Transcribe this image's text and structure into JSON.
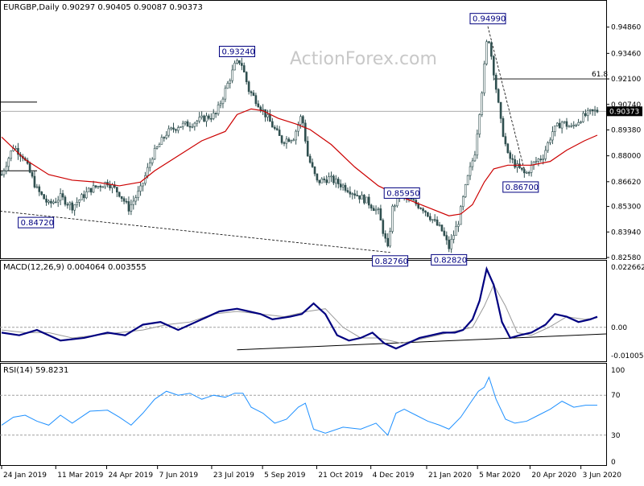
{
  "chart_data": [
    {
      "type": "candlestick",
      "title": "EURGBP,Daily  0.90297 0.90405 0.90087 0.90373",
      "watermark": "ActionForex.com",
      "ylim": [
        0.8258,
        0.9622
      ],
      "y_ticks": [
        "0.94860",
        "0.93460",
        "0.92100",
        "0.90740",
        "0.89380",
        "0.88000",
        "0.86620",
        "0.85300",
        "0.83940",
        "0.82580"
      ],
      "current_price": "0.90373",
      "fib_label": "61.8",
      "fib_level": 0.921,
      "candle_color": "#2f4f4f",
      "ma_color": "#cc0000",
      "annotations": [
        {
          "label": "0.84720",
          "date_index": 10,
          "price": 0.8472
        },
        {
          "label": "0.93240",
          "date_index": 200,
          "price": 0.9324
        },
        {
          "label": "0.82760",
          "date_index": 330,
          "price": 0.8276
        },
        {
          "label": "0.85950",
          "date_index": 340,
          "price": 0.8595
        },
        {
          "label": "0.82820",
          "date_index": 380,
          "price": 0.8282
        },
        {
          "label": "0.94990",
          "date_index": 413,
          "price": 0.9499
        },
        {
          "label": "0.86700",
          "date_index": 445,
          "price": 0.867
        }
      ],
      "price_series": [
        {
          "d": 0,
          "v": 0.87
        },
        {
          "d": 10,
          "v": 0.885
        },
        {
          "d": 18,
          "v": 0.88
        },
        {
          "d": 30,
          "v": 0.862
        },
        {
          "d": 40,
          "v": 0.854
        },
        {
          "d": 50,
          "v": 0.858
        },
        {
          "d": 60,
          "v": 0.853
        },
        {
          "d": 75,
          "v": 0.862
        },
        {
          "d": 90,
          "v": 0.866
        },
        {
          "d": 100,
          "v": 0.86
        },
        {
          "d": 108,
          "v": 0.852
        },
        {
          "d": 118,
          "v": 0.862
        },
        {
          "d": 128,
          "v": 0.88
        },
        {
          "d": 140,
          "v": 0.892
        },
        {
          "d": 150,
          "v": 0.896
        },
        {
          "d": 160,
          "v": 0.897
        },
        {
          "d": 172,
          "v": 0.9
        },
        {
          "d": 182,
          "v": 0.902
        },
        {
          "d": 190,
          "v": 0.915
        },
        {
          "d": 198,
          "v": 0.928
        },
        {
          "d": 203,
          "v": 0.931
        },
        {
          "d": 210,
          "v": 0.915
        },
        {
          "d": 218,
          "v": 0.908
        },
        {
          "d": 228,
          "v": 0.898
        },
        {
          "d": 238,
          "v": 0.888
        },
        {
          "d": 248,
          "v": 0.89
        },
        {
          "d": 255,
          "v": 0.902
        },
        {
          "d": 260,
          "v": 0.88
        },
        {
          "d": 268,
          "v": 0.866
        },
        {
          "d": 278,
          "v": 0.868
        },
        {
          "d": 290,
          "v": 0.864
        },
        {
          "d": 300,
          "v": 0.86
        },
        {
          "d": 310,
          "v": 0.856
        },
        {
          "d": 320,
          "v": 0.85
        },
        {
          "d": 328,
          "v": 0.83
        },
        {
          "d": 332,
          "v": 0.852
        },
        {
          "d": 338,
          "v": 0.859
        },
        {
          "d": 348,
          "v": 0.856
        },
        {
          "d": 358,
          "v": 0.852
        },
        {
          "d": 366,
          "v": 0.846
        },
        {
          "d": 374,
          "v": 0.84
        },
        {
          "d": 380,
          "v": 0.831
        },
        {
          "d": 388,
          "v": 0.845
        },
        {
          "d": 395,
          "v": 0.866
        },
        {
          "d": 402,
          "v": 0.882
        },
        {
          "d": 408,
          "v": 0.915
        },
        {
          "d": 413,
          "v": 0.946
        },
        {
          "d": 418,
          "v": 0.925
        },
        {
          "d": 424,
          "v": 0.898
        },
        {
          "d": 430,
          "v": 0.88
        },
        {
          "d": 438,
          "v": 0.874
        },
        {
          "d": 445,
          "v": 0.87
        },
        {
          "d": 452,
          "v": 0.876
        },
        {
          "d": 460,
          "v": 0.88
        },
        {
          "d": 468,
          "v": 0.893
        },
        {
          "d": 476,
          "v": 0.898
        },
        {
          "d": 484,
          "v": 0.895
        },
        {
          "d": 492,
          "v": 0.9
        },
        {
          "d": 500,
          "v": 0.903
        },
        {
          "d": 506,
          "v": 0.904
        }
      ],
      "ma_series": [
        {
          "d": 0,
          "v": 0.89
        },
        {
          "d": 20,
          "v": 0.878
        },
        {
          "d": 40,
          "v": 0.87
        },
        {
          "d": 60,
          "v": 0.867
        },
        {
          "d": 80,
          "v": 0.866
        },
        {
          "d": 100,
          "v": 0.864
        },
        {
          "d": 118,
          "v": 0.866
        },
        {
          "d": 130,
          "v": 0.872
        },
        {
          "d": 150,
          "v": 0.88
        },
        {
          "d": 170,
          "v": 0.888
        },
        {
          "d": 190,
          "v": 0.893
        },
        {
          "d": 200,
          "v": 0.902
        },
        {
          "d": 212,
          "v": 0.905
        },
        {
          "d": 222,
          "v": 0.904
        },
        {
          "d": 235,
          "v": 0.9
        },
        {
          "d": 250,
          "v": 0.897
        },
        {
          "d": 262,
          "v": 0.894
        },
        {
          "d": 280,
          "v": 0.886
        },
        {
          "d": 300,
          "v": 0.874
        },
        {
          "d": 320,
          "v": 0.864
        },
        {
          "d": 340,
          "v": 0.858
        },
        {
          "d": 360,
          "v": 0.853
        },
        {
          "d": 380,
          "v": 0.848
        },
        {
          "d": 390,
          "v": 0.849
        },
        {
          "d": 400,
          "v": 0.854
        },
        {
          "d": 410,
          "v": 0.866
        },
        {
          "d": 418,
          "v": 0.873
        },
        {
          "d": 430,
          "v": 0.875
        },
        {
          "d": 450,
          "v": 0.875
        },
        {
          "d": 466,
          "v": 0.877
        },
        {
          "d": 480,
          "v": 0.883
        },
        {
          "d": 495,
          "v": 0.888
        },
        {
          "d": 506,
          "v": 0.891
        }
      ]
    },
    {
      "type": "line",
      "title": "MACD(12,26,9) 0.004064 0.003555",
      "ylim": [
        -0.0125,
        0.0245
      ],
      "y_ticks": [
        "0.022662",
        "0.00",
        "-0.010052"
      ],
      "series": [
        {
          "color": "#000080",
          "values": [
            {
              "d": 0,
              "v": -0.002
            },
            {
              "d": 15,
              "v": -0.003
            },
            {
              "d": 30,
              "v": -0.001
            },
            {
              "d": 50,
              "v": -0.005
            },
            {
              "d": 70,
              "v": -0.004
            },
            {
              "d": 90,
              "v": -0.002
            },
            {
              "d": 105,
              "v": -0.003
            },
            {
              "d": 120,
              "v": 0.001
            },
            {
              "d": 135,
              "v": 0.002
            },
            {
              "d": 150,
              "v": -0.001
            },
            {
              "d": 170,
              "v": 0.003
            },
            {
              "d": 185,
              "v": 0.006
            },
            {
              "d": 200,
              "v": 0.007
            },
            {
              "d": 210,
              "v": 0.006
            },
            {
              "d": 220,
              "v": 0.005
            },
            {
              "d": 230,
              "v": 0.003
            },
            {
              "d": 245,
              "v": 0.004
            },
            {
              "d": 255,
              "v": 0.005
            },
            {
              "d": 265,
              "v": 0.009
            },
            {
              "d": 275,
              "v": 0.005
            },
            {
              "d": 285,
              "v": -0.003
            },
            {
              "d": 295,
              "v": -0.005
            },
            {
              "d": 305,
              "v": -0.004
            },
            {
              "d": 315,
              "v": -0.002
            },
            {
              "d": 325,
              "v": -0.006
            },
            {
              "d": 335,
              "v": -0.008
            },
            {
              "d": 345,
              "v": -0.006
            },
            {
              "d": 355,
              "v": -0.004
            },
            {
              "d": 365,
              "v": -0.003
            },
            {
              "d": 375,
              "v": -0.002
            },
            {
              "d": 385,
              "v": -0.002
            },
            {
              "d": 392,
              "v": -0.001
            },
            {
              "d": 400,
              "v": 0.003
            },
            {
              "d": 406,
              "v": 0.01
            },
            {
              "d": 412,
              "v": 0.022
            },
            {
              "d": 418,
              "v": 0.016
            },
            {
              "d": 425,
              "v": 0.002
            },
            {
              "d": 432,
              "v": -0.004
            },
            {
              "d": 440,
              "v": -0.003
            },
            {
              "d": 450,
              "v": -0.002
            },
            {
              "d": 462,
              "v": 0.001
            },
            {
              "d": 470,
              "v": 0.005
            },
            {
              "d": 480,
              "v": 0.004
            },
            {
              "d": 490,
              "v": 0.002
            },
            {
              "d": 500,
              "v": 0.003
            },
            {
              "d": 506,
              "v": 0.004
            }
          ]
        },
        {
          "color": "#999999",
          "values": [
            {
              "d": 0,
              "v": -0.001
            },
            {
              "d": 20,
              "v": -0.002
            },
            {
              "d": 40,
              "v": -0.002
            },
            {
              "d": 60,
              "v": -0.004
            },
            {
              "d": 80,
              "v": -0.003
            },
            {
              "d": 100,
              "v": -0.002
            },
            {
              "d": 120,
              "v": -0.001
            },
            {
              "d": 140,
              "v": 0.001
            },
            {
              "d": 160,
              "v": 0.002
            },
            {
              "d": 180,
              "v": 0.005
            },
            {
              "d": 200,
              "v": 0.006
            },
            {
              "d": 220,
              "v": 0.005
            },
            {
              "d": 240,
              "v": 0.004
            },
            {
              "d": 260,
              "v": 0.006
            },
            {
              "d": 275,
              "v": 0.007
            },
            {
              "d": 290,
              "v": 0.0
            },
            {
              "d": 305,
              "v": -0.004
            },
            {
              "d": 320,
              "v": -0.004
            },
            {
              "d": 340,
              "v": -0.006
            },
            {
              "d": 360,
              "v": -0.004
            },
            {
              "d": 380,
              "v": -0.002
            },
            {
              "d": 400,
              "v": 0.0
            },
            {
              "d": 410,
              "v": 0.008
            },
            {
              "d": 418,
              "v": 0.016
            },
            {
              "d": 428,
              "v": 0.008
            },
            {
              "d": 438,
              "v": -0.002
            },
            {
              "d": 450,
              "v": -0.003
            },
            {
              "d": 465,
              "v": 0.0
            },
            {
              "d": 480,
              "v": 0.004
            },
            {
              "d": 495,
              "v": 0.003
            },
            {
              "d": 506,
              "v": 0.0036
            }
          ]
        }
      ]
    },
    {
      "type": "line",
      "title": "RSI(14) 59.8231",
      "ylim": [
        0,
        100
      ],
      "y_ticks": [
        "100",
        "70",
        "30",
        "0"
      ],
      "series": [
        {
          "color": "#1e90ff",
          "values": [
            {
              "d": 0,
              "v": 40
            },
            {
              "d": 10,
              "v": 48
            },
            {
              "d": 20,
              "v": 50
            },
            {
              "d": 30,
              "v": 44
            },
            {
              "d": 40,
              "v": 40
            },
            {
              "d": 50,
              "v": 50
            },
            {
              "d": 60,
              "v": 42
            },
            {
              "d": 75,
              "v": 54
            },
            {
              "d": 90,
              "v": 55
            },
            {
              "d": 100,
              "v": 48
            },
            {
              "d": 110,
              "v": 40
            },
            {
              "d": 120,
              "v": 52
            },
            {
              "d": 130,
              "v": 66
            },
            {
              "d": 140,
              "v": 74
            },
            {
              "d": 150,
              "v": 70
            },
            {
              "d": 160,
              "v": 72
            },
            {
              "d": 170,
              "v": 66
            },
            {
              "d": 180,
              "v": 70
            },
            {
              "d": 190,
              "v": 68
            },
            {
              "d": 198,
              "v": 72
            },
            {
              "d": 205,
              "v": 72
            },
            {
              "d": 212,
              "v": 58
            },
            {
              "d": 222,
              "v": 52
            },
            {
              "d": 232,
              "v": 42
            },
            {
              "d": 242,
              "v": 46
            },
            {
              "d": 252,
              "v": 58
            },
            {
              "d": 258,
              "v": 62
            },
            {
              "d": 265,
              "v": 36
            },
            {
              "d": 275,
              "v": 32
            },
            {
              "d": 290,
              "v": 38
            },
            {
              "d": 305,
              "v": 36
            },
            {
              "d": 318,
              "v": 42
            },
            {
              "d": 328,
              "v": 30
            },
            {
              "d": 335,
              "v": 52
            },
            {
              "d": 342,
              "v": 56
            },
            {
              "d": 352,
              "v": 50
            },
            {
              "d": 362,
              "v": 44
            },
            {
              "d": 372,
              "v": 40
            },
            {
              "d": 380,
              "v": 36
            },
            {
              "d": 390,
              "v": 48
            },
            {
              "d": 398,
              "v": 62
            },
            {
              "d": 405,
              "v": 74
            },
            {
              "d": 410,
              "v": 78
            },
            {
              "d": 414,
              "v": 88
            },
            {
              "d": 420,
              "v": 66
            },
            {
              "d": 428,
              "v": 46
            },
            {
              "d": 436,
              "v": 42
            },
            {
              "d": 446,
              "v": 44
            },
            {
              "d": 456,
              "v": 50
            },
            {
              "d": 466,
              "v": 56
            },
            {
              "d": 476,
              "v": 64
            },
            {
              "d": 486,
              "v": 58
            },
            {
              "d": 496,
              "v": 60
            },
            {
              "d": 506,
              "v": 60
            }
          ]
        }
      ]
    }
  ],
  "x_axis": {
    "ticks": [
      {
        "label": "24 Jan 2019",
        "d": 0
      },
      {
        "label": "11 Mar 2019",
        "d": 33
      },
      {
        "label": "24 Apr 2019",
        "d": 64
      },
      {
        "label": "7 Jun 2019",
        "d": 95
      },
      {
        "label": "23 Jul 2019",
        "d": 128
      },
      {
        "label": "5 Sep 2019",
        "d": 159
      },
      {
        "label": "21 Oct 2019",
        "d": 192
      },
      {
        "label": "4 Dec 2019",
        "d": 225
      },
      {
        "label": "21 Jan 2020",
        "d": 259
      },
      {
        "label": "5 Mar 2020",
        "d": 290
      },
      {
        "label": "20 Apr 2020",
        "d": 322
      },
      {
        "label": "3 Jun 2020",
        "d": 353
      }
    ]
  }
}
